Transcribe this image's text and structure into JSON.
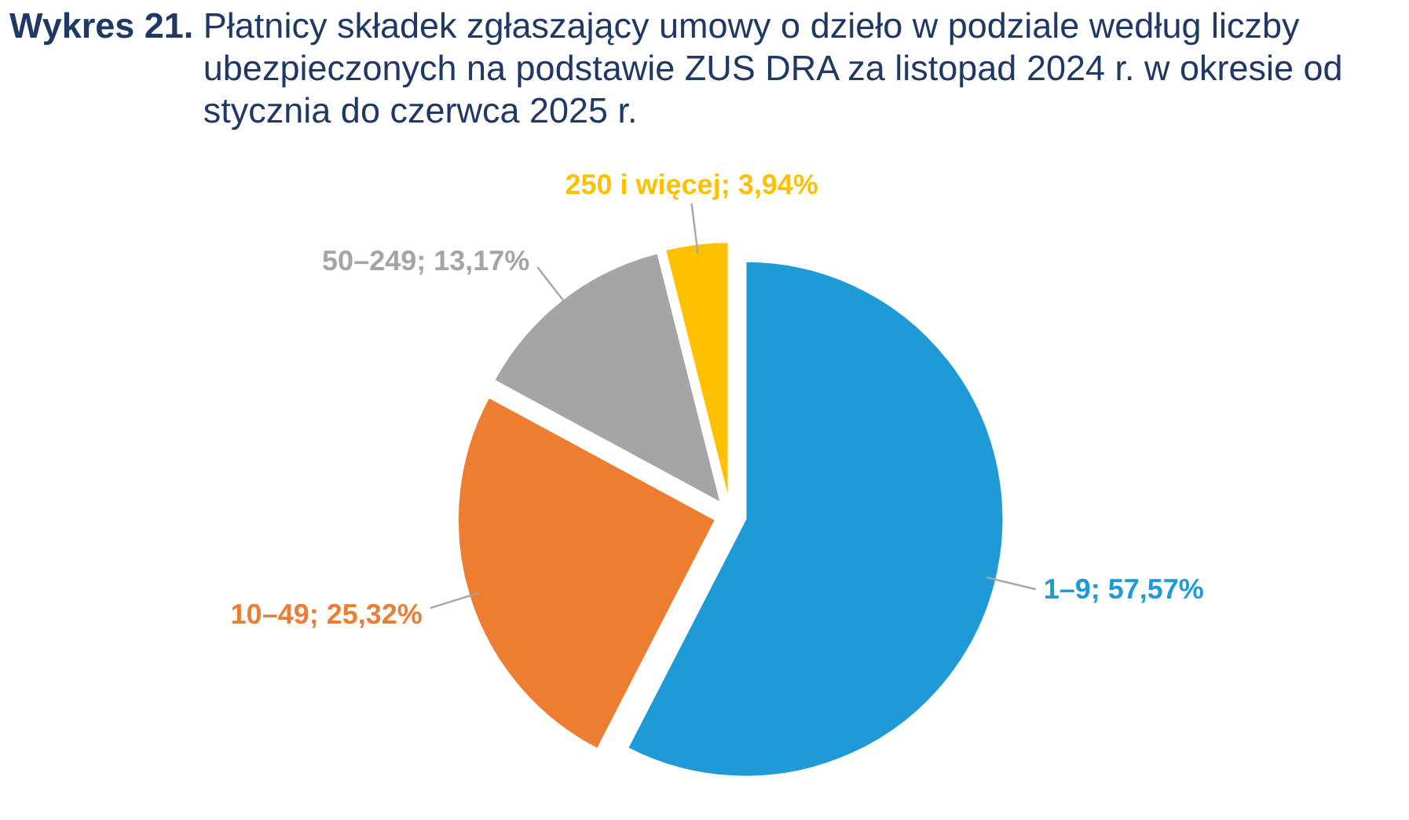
{
  "chart_data": {
    "type": "pie",
    "title": "Wykres 21. Płatnicy składek zgłaszający umowy o dzieło w podziale według liczby ubezpieczonych na podstawie ZUS DRA za listopad 2024 r. w okresie od stycznia do czerwca 2025 r.",
    "categories": [
      "1–9",
      "10–49",
      "50–249",
      "250 i więcej"
    ],
    "values": [
      57.57,
      25.32,
      13.17,
      3.94
    ],
    "colors": [
      "#1e9ad6",
      "#ed7d31",
      "#a5a5a5",
      "#ffc000"
    ],
    "value_labels": [
      "57,57%",
      "25,32%",
      "13,17%",
      "3,94%"
    ]
  }
}
